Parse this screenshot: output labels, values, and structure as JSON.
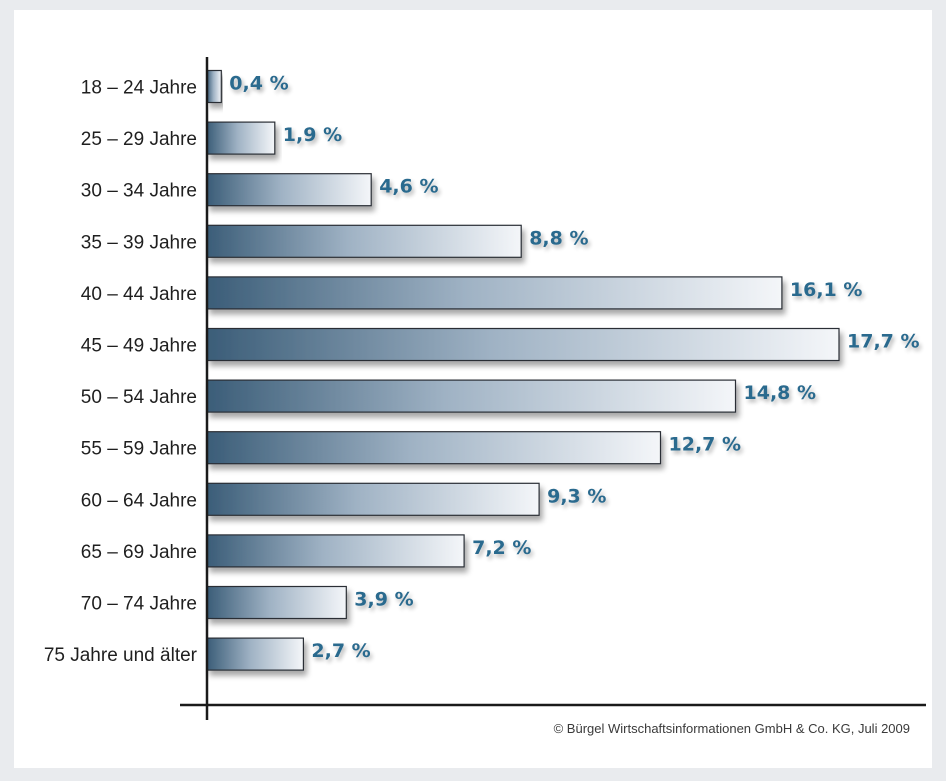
{
  "chart_data": {
    "type": "bar",
    "orientation": "horizontal",
    "categories": [
      "18 – 24 Jahre",
      "25 – 29 Jahre",
      "30 – 34 Jahre",
      "35 – 39 Jahre",
      "40 – 44 Jahre",
      "45 – 49 Jahre",
      "50 – 54 Jahre",
      "55 – 59 Jahre",
      "60 – 64 Jahre",
      "65 – 69 Jahre",
      "70 – 74 Jahre",
      "75 Jahre und älter"
    ],
    "values": [
      0.4,
      1.9,
      4.6,
      8.8,
      16.1,
      17.7,
      14.8,
      12.7,
      9.3,
      7.2,
      3.9,
      2.7
    ],
    "value_labels": [
      "0,4 %",
      "1,9 %",
      "4,6 %",
      "8,8 %",
      "16,1 %",
      "17,7 %",
      "14,8 %",
      "12,7 %",
      "9,3 %",
      "7,2 %",
      "3,9 %",
      "2,7 %"
    ],
    "title": "",
    "xlabel": "",
    "ylabel": "",
    "xlim": [
      0,
      17.7
    ],
    "grid": false,
    "legend": "none",
    "colors": {
      "bar_dark": "#3b5d78",
      "bar_light": "#f4f6f9",
      "bar_border": "#2a2f36",
      "value_text": "#2c6a8e",
      "axis": "#1a1a1a"
    }
  },
  "footer": {
    "copyright": "© Bürgel Wirtschaftsinformationen GmbH & Co. KG, Juli 2009"
  }
}
